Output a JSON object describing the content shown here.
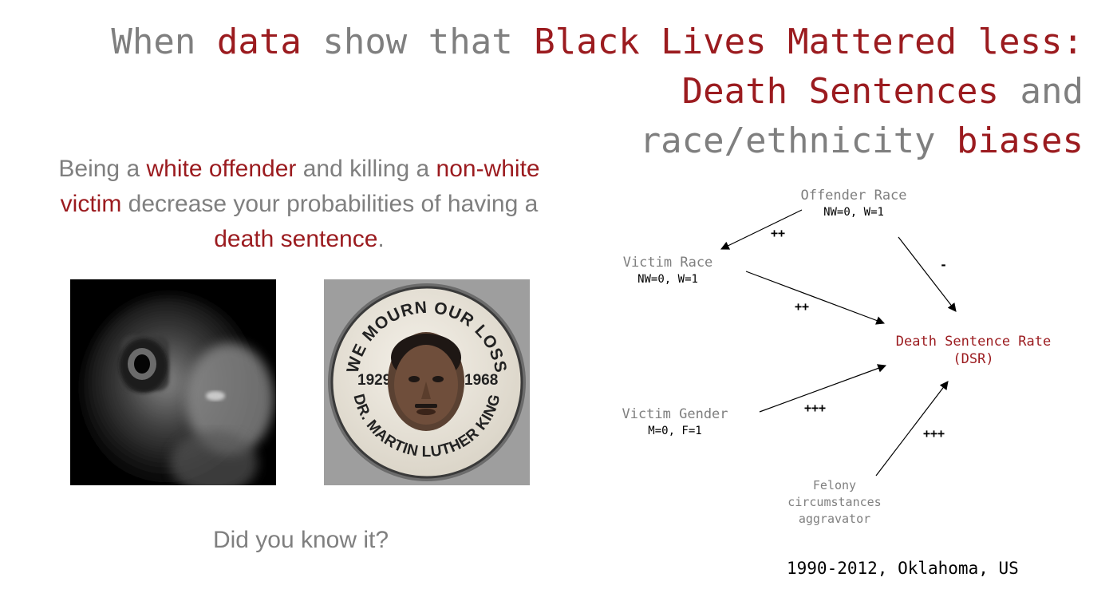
{
  "title": {
    "line1": [
      {
        "text": "When ",
        "color": "#7f7f7f"
      },
      {
        "text": "data",
        "color": "#9b1b1f"
      },
      {
        "text": " show that ",
        "color": "#7f7f7f"
      },
      {
        "text": "Black Lives Mattered less:",
        "color": "#9b1b1f"
      }
    ],
    "line2": [
      {
        "text": "Death Sentences",
        "color": "#9b1b1f"
      },
      {
        "text": " and",
        "color": "#7f7f7f"
      }
    ],
    "line3": [
      {
        "text": "race/ethnicity ",
        "color": "#7f7f7f"
      },
      {
        "text": "biases",
        "color": "#9b1b1f"
      }
    ]
  },
  "intro": {
    "segments": [
      {
        "text": "Being a ",
        "color": "#7f7f7f"
      },
      {
        "text": "white offender",
        "color": "#9b1b1f"
      },
      {
        "text": " and killing a ",
        "color": "#7f7f7f"
      },
      {
        "text": "non-white victim",
        "color": "#9b1b1f"
      },
      {
        "text": " decrease your probabilities of having a ",
        "color": "#7f7f7f"
      },
      {
        "text": "death sentence",
        "color": "#9b1b1f"
      },
      {
        "text": ".",
        "color": "#7f7f7f"
      }
    ]
  },
  "images": {
    "gun": {
      "alt": "hand pointing a gun at the viewer"
    },
    "button": {
      "top_text": "WE MOURN OUR LOSS",
      "bottom_text": "DR. MARTIN LUTHER KING",
      "year_left": "1929",
      "year_right": "1968"
    }
  },
  "question": "Did you know it?",
  "diagram": {
    "nodes": {
      "offender_race": {
        "name": "Offender Race",
        "coding": "NW=0, W=1"
      },
      "victim_race": {
        "name": "Victim Race",
        "coding": "NW=0, W=1"
      },
      "victim_gender": {
        "name": "Victim Gender",
        "coding": "M=0, F=1"
      },
      "felony": {
        "line1": "Felony",
        "line2": "circumstances",
        "line3": "aggravator"
      },
      "dsr": {
        "line1": "Death Sentence Rate",
        "line2": "(DSR)",
        "color": "#9b1b1f"
      }
    },
    "edges": {
      "offender_to_victim": "++",
      "offender_to_dsr": "-",
      "victim_race_to_dsr": "++",
      "victim_gender_to_dsr": "+++",
      "felony_to_dsr": "+++"
    }
  },
  "footer": "1990-2012, Oklahoma, US"
}
